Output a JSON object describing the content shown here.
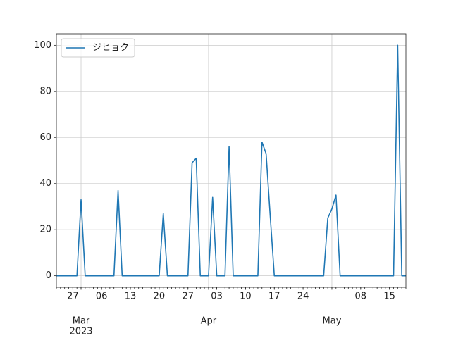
{
  "chart_data": {
    "type": "line",
    "x": [
      "2023-02-23",
      "2023-02-24",
      "2023-02-25",
      "2023-02-26",
      "2023-02-27",
      "2023-02-28",
      "2023-03-01",
      "2023-03-02",
      "2023-03-03",
      "2023-03-04",
      "2023-03-05",
      "2023-03-06",
      "2023-03-07",
      "2023-03-08",
      "2023-03-09",
      "2023-03-10",
      "2023-03-11",
      "2023-03-12",
      "2023-03-13",
      "2023-03-14",
      "2023-03-15",
      "2023-03-16",
      "2023-03-17",
      "2023-03-18",
      "2023-03-19",
      "2023-03-20",
      "2023-03-21",
      "2023-03-22",
      "2023-03-23",
      "2023-03-24",
      "2023-03-25",
      "2023-03-26",
      "2023-03-27",
      "2023-03-28",
      "2023-03-29",
      "2023-03-30",
      "2023-03-31",
      "2023-04-01",
      "2023-04-02",
      "2023-04-03",
      "2023-04-04",
      "2023-04-05",
      "2023-04-06",
      "2023-04-07",
      "2023-04-08",
      "2023-04-09",
      "2023-04-10",
      "2023-04-11",
      "2023-04-12",
      "2023-04-13",
      "2023-04-14",
      "2023-04-15",
      "2023-04-16",
      "2023-04-17",
      "2023-04-18",
      "2023-04-19",
      "2023-04-20",
      "2023-04-21",
      "2023-04-22",
      "2023-04-23",
      "2023-04-24",
      "2023-04-25",
      "2023-04-26",
      "2023-04-27",
      "2023-04-28",
      "2023-04-29",
      "2023-04-30",
      "2023-05-01",
      "2023-05-02",
      "2023-05-03",
      "2023-05-04",
      "2023-05-05",
      "2023-05-06",
      "2023-05-07",
      "2023-05-08",
      "2023-05-09",
      "2023-05-10",
      "2023-05-11",
      "2023-05-12",
      "2023-05-13",
      "2023-05-14",
      "2023-05-15",
      "2023-05-16",
      "2023-05-17",
      "2023-05-18",
      "2023-05-19"
    ],
    "series": [
      {
        "name": "ジヒョク",
        "color": "#1f77b4",
        "values": [
          0,
          0,
          0,
          0,
          0,
          0,
          33,
          0,
          0,
          0,
          0,
          0,
          0,
          0,
          0,
          37,
          0,
          0,
          0,
          0,
          0,
          0,
          0,
          0,
          0,
          0,
          27,
          0,
          0,
          0,
          0,
          0,
          0,
          49,
          51,
          0,
          0,
          0,
          34,
          0,
          0,
          0,
          56,
          0,
          0,
          0,
          0,
          0,
          0,
          0,
          58,
          53,
          26,
          0,
          0,
          0,
          0,
          0,
          0,
          0,
          0,
          0,
          0,
          0,
          0,
          0,
          25,
          29,
          35,
          0,
          0,
          0,
          0,
          0,
          0,
          0,
          0,
          0,
          0,
          0,
          0,
          0,
          0,
          100,
          0,
          0
        ]
      }
    ],
    "xlim": [
      "2023-02-23",
      "2023-05-19"
    ],
    "xticks": [
      {
        "value": "2023-02-27",
        "label": "27"
      },
      {
        "value": "2023-03-06",
        "label": "06"
      },
      {
        "value": "2023-03-13",
        "label": "13"
      },
      {
        "value": "2023-03-20",
        "label": "20"
      },
      {
        "value": "2023-03-27",
        "label": "27"
      },
      {
        "value": "2023-04-03",
        "label": "03"
      },
      {
        "value": "2023-04-10",
        "label": "10"
      },
      {
        "value": "2023-04-17",
        "label": "17"
      },
      {
        "value": "2023-04-24",
        "label": "24"
      },
      {
        "value": "2023-05-08",
        "label": "08"
      },
      {
        "value": "2023-05-15",
        "label": "15"
      }
    ],
    "month_ticks": [
      {
        "value": "2023-03-01",
        "label": "Mar"
      },
      {
        "value": "2023-04-01",
        "label": "Apr"
      },
      {
        "value": "2023-05-01",
        "label": "May"
      }
    ],
    "year_label": {
      "value": "2023-03-01",
      "label": "2023"
    },
    "ylim": [
      -5,
      105
    ],
    "yticks": [
      0,
      20,
      40,
      60,
      80,
      100
    ],
    "grid": true,
    "legend": "upper left"
  }
}
